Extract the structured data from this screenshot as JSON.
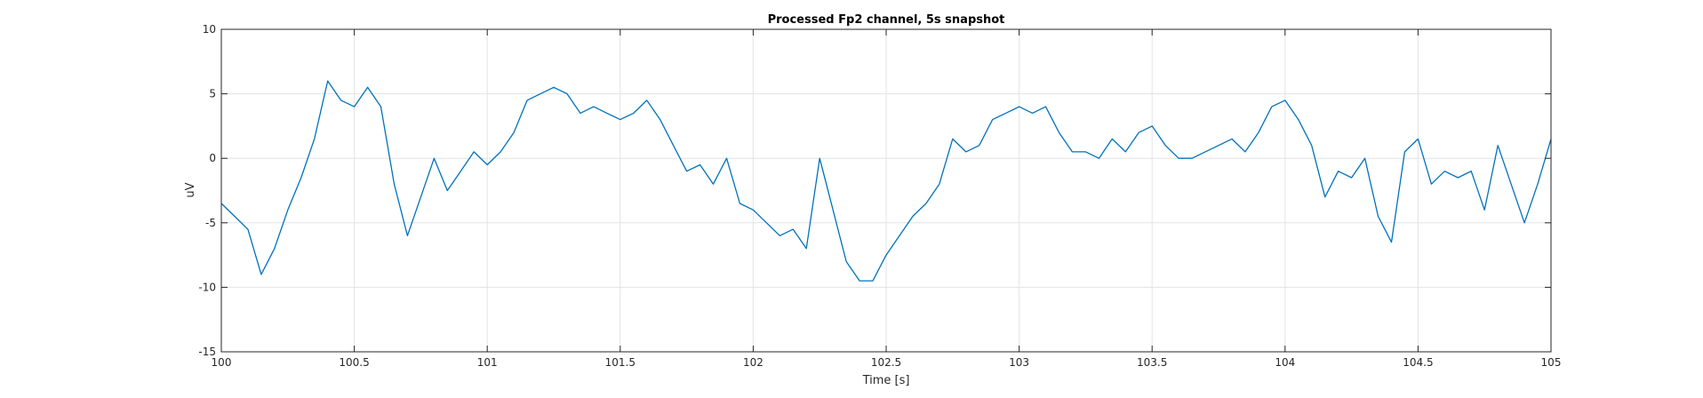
{
  "chart_data": {
    "type": "line",
    "title": "Processed Fp2 channel, 5s snapshot",
    "xlabel": "Time [s]",
    "ylabel": "uV",
    "xlim": [
      100,
      105
    ],
    "ylim": [
      -15,
      10
    ],
    "xticks": [
      "100",
      "100.5",
      "101",
      "101.5",
      "102",
      "102.5",
      "103",
      "103.5",
      "104",
      "104.5",
      "105"
    ],
    "yticks": [
      "-15",
      "-10",
      "-5",
      "0",
      "5",
      "10"
    ],
    "grid": true,
    "line_color": "#0072BD",
    "series": [
      {
        "x": [
          100.0,
          100.05,
          100.1,
          100.15,
          100.2,
          100.25,
          100.3,
          100.35,
          100.4,
          100.45,
          100.5,
          100.55,
          100.6,
          100.65,
          100.7,
          100.75,
          100.8,
          100.85,
          100.9,
          100.95,
          101.0,
          101.05,
          101.1,
          101.15,
          101.2,
          101.25,
          101.3,
          101.35,
          101.4,
          101.45,
          101.5,
          101.55,
          101.6,
          101.65,
          101.7,
          101.75,
          101.8,
          101.85,
          101.9,
          101.95,
          102.0,
          102.05,
          102.1,
          102.15,
          102.2,
          102.25,
          102.3,
          102.35,
          102.4,
          102.45,
          102.5,
          102.55,
          102.6,
          102.65,
          102.7,
          102.75,
          102.8,
          102.85,
          102.9,
          102.95,
          103.0,
          103.05,
          103.1,
          103.15,
          103.2,
          103.25,
          103.3,
          103.35,
          103.4,
          103.45,
          103.5,
          103.55,
          103.6,
          103.65,
          103.7,
          103.75,
          103.8,
          103.85,
          103.9,
          103.95,
          104.0,
          104.05,
          104.1,
          104.15,
          104.2,
          104.25,
          104.3,
          104.35,
          104.4,
          104.45,
          104.5,
          104.55,
          104.6,
          104.65,
          104.7,
          104.75,
          104.8,
          104.85,
          104.9,
          104.95,
          105.0
        ],
        "y": [
          -3.5,
          -4.5,
          -5.5,
          -9.0,
          -7.0,
          -4.0,
          -1.5,
          1.5,
          6.0,
          4.5,
          4.0,
          5.5,
          4.0,
          -2.0,
          -6.0,
          -3.0,
          0.0,
          -2.5,
          -1.0,
          0.5,
          -0.5,
          0.5,
          2.0,
          4.5,
          5.0,
          5.5,
          5.0,
          3.5,
          4.0,
          3.5,
          3.0,
          3.5,
          4.5,
          3.0,
          1.0,
          -1.0,
          -0.5,
          -2.0,
          0.0,
          -3.5,
          -4.0,
          -5.0,
          -6.0,
          -5.5,
          -7.0,
          0.0,
          -4.0,
          -8.0,
          -9.5,
          -9.5,
          -7.5,
          -6.0,
          -4.5,
          -3.5,
          -2.0,
          1.5,
          0.5,
          1.0,
          3.0,
          3.5,
          4.0,
          3.5,
          4.0,
          2.0,
          0.5,
          0.5,
          0.0,
          1.5,
          0.5,
          2.0,
          2.5,
          1.0,
          0.0,
          0.0,
          0.5,
          1.0,
          1.5,
          0.5,
          2.0,
          4.0,
          4.5,
          3.0,
          1.0,
          -3.0,
          -1.0,
          -1.5,
          0.0,
          -4.5,
          -6.5,
          0.5,
          1.5,
          -2.0,
          -1.0,
          -1.5,
          -1.0,
          -4.0,
          1.0,
          -2.0,
          -5.0,
          -2.0,
          1.5
        ]
      }
    ]
  }
}
